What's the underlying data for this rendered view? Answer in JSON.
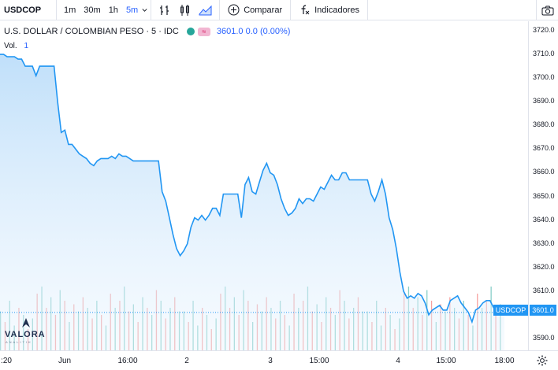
{
  "toolbar": {
    "symbol": "USDCOP",
    "intervals": [
      "1m",
      "30m",
      "1h",
      "5m"
    ],
    "active_interval": "5m",
    "compare_label": "Comparar",
    "indicators_label": "Indicadores"
  },
  "legend": {
    "title": "U.S. DOLLAR / COLOMBIAN PESO · 5 · IDC",
    "ohlc": "3601.0  0.0 (0.00%)",
    "volume_label": "Vol.",
    "volume_value": "1"
  },
  "price_axis": {
    "ticks": [
      "3720.0",
      "3710.0",
      "3700.0",
      "3690.0",
      "3680.0",
      "3670.0",
      "3660.0",
      "3650.0",
      "3640.0",
      "3630.0",
      "3620.0",
      "3610.0",
      "3590.0"
    ],
    "current_price": "3601.0",
    "symbol_tag": "USDCOP"
  },
  "time_axis": {
    "ticks": [
      ":20",
      "Jun",
      "16:00",
      "2",
      "3",
      "15:00",
      "4",
      "15:00",
      "18:00"
    ]
  },
  "logo": {
    "name": "VALORA",
    "sub": "ANALITIK"
  },
  "colors": {
    "line": "#2196f3",
    "area": "#cfe6fb",
    "vol_up": "#26a69a",
    "vol_down": "#ef5350"
  },
  "chart_data": {
    "type": "area",
    "series": [
      {
        "values": [
          3710,
          3710,
          3709,
          3709,
          3709,
          3708,
          3708,
          3705,
          3705,
          3705,
          3701,
          3705,
          3705,
          3705,
          3705,
          3705,
          3690,
          3677,
          3678,
          3672,
          3672,
          3670,
          3668,
          3667,
          3666,
          3664,
          3663,
          3665,
          3666,
          3666,
          3666,
          3667,
          3666,
          3668,
          3667,
          3667,
          3666,
          3665,
          3665,
          3665,
          3665,
          3665,
          3665,
          3665,
          3665,
          3652,
          3648,
          3641,
          3634,
          3628,
          3625,
          3627,
          3630,
          3637,
          3641,
          3640,
          3642,
          3640,
          3642,
          3645,
          3645,
          3642,
          3651,
          3651,
          3651,
          3651,
          3651,
          3641,
          3655,
          3658,
          3652,
          3651,
          3656,
          3661,
          3664,
          3660,
          3659,
          3655,
          3649,
          3645,
          3642,
          3643,
          3645,
          3649,
          3647,
          3649,
          3649,
          3648,
          3651,
          3654,
          3653,
          3656,
          3659,
          3657,
          3657,
          3660,
          3660,
          3657,
          3657,
          3657,
          3657,
          3657,
          3657,
          3651,
          3648,
          3652,
          3657,
          3651,
          3641,
          3636,
          3628,
          3618,
          3610,
          3607,
          3608,
          3607,
          3609,
          3608,
          3605,
          3600,
          3602,
          3603,
          3604,
          3602,
          3602,
          3606,
          3607,
          3608,
          3605,
          3603,
          3601,
          3597,
          3602,
          3603,
          3605,
          3606,
          3606,
          3603,
          3602,
          3602,
          3601
        ]
      }
    ],
    "ylim": [
      3585,
      3724
    ],
    "grid": false,
    "volume": [
      {
        "dir": "up",
        "v": 0.55
      },
      {
        "dir": "down",
        "v": 0.4
      },
      {
        "dir": "up",
        "v": 0.7
      },
      {
        "dir": "up",
        "v": 0.35
      },
      {
        "dir": "down",
        "v": 0.6
      },
      {
        "dir": "up",
        "v": 0.5
      },
      {
        "dir": "down",
        "v": 0.3
      },
      {
        "dir": "up",
        "v": 0.45
      },
      {
        "dir": "down",
        "v": 0.8
      },
      {
        "dir": "up",
        "v": 0.9
      },
      {
        "dir": "down",
        "v": 0.6
      },
      {
        "dir": "up",
        "v": 0.75
      },
      {
        "dir": "down",
        "v": 0.5
      },
      {
        "dir": "up",
        "v": 0.85
      },
      {
        "dir": "down",
        "v": 0.7
      },
      {
        "dir": "up",
        "v": 0.4
      },
      {
        "dir": "down",
        "v": 0.65
      },
      {
        "dir": "up",
        "v": 0.55
      },
      {
        "dir": "down",
        "v": 0.75
      },
      {
        "dir": "up",
        "v": 0.6
      },
      {
        "dir": "down",
        "v": 0.45
      },
      {
        "dir": "up",
        "v": 0.7
      },
      {
        "dir": "down",
        "v": 0.5
      },
      {
        "dir": "up",
        "v": 0.35
      },
      {
        "dir": "down",
        "v": 0.8
      },
      {
        "dir": "up",
        "v": 0.6
      },
      {
        "dir": "down",
        "v": 0.7
      },
      {
        "dir": "up",
        "v": 0.9
      },
      {
        "dir": "down",
        "v": 0.55
      },
      {
        "dir": "up",
        "v": 0.65
      },
      {
        "dir": "down",
        "v": 0.4
      },
      {
        "dir": "up",
        "v": 0.75
      },
      {
        "dir": "down",
        "v": 0.6
      },
      {
        "dir": "up",
        "v": 0.5
      },
      {
        "dir": "down",
        "v": 0.85
      },
      {
        "dir": "up",
        "v": 0.7
      },
      {
        "dir": "down",
        "v": 0.45
      },
      {
        "dir": "up",
        "v": 0.6
      },
      {
        "dir": "down",
        "v": 0.75
      },
      {
        "dir": "up",
        "v": 0.55
      }
    ]
  }
}
